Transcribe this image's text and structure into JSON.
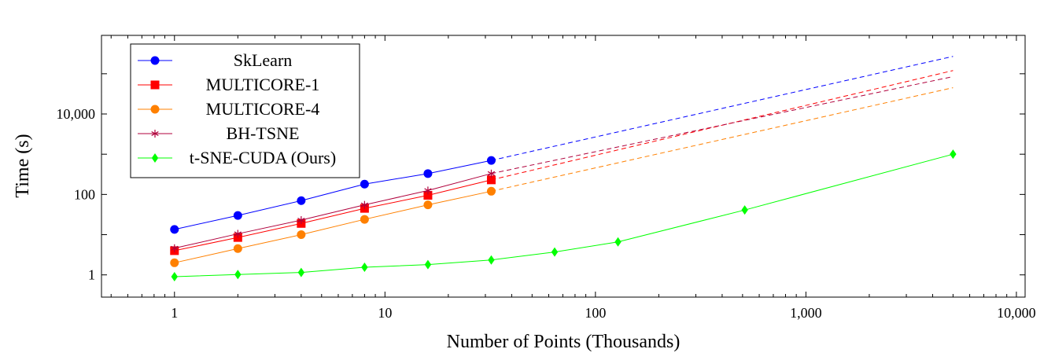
{
  "chart_data": {
    "type": "line",
    "title": "",
    "xlabel": "Number of Points (Thousands)",
    "ylabel": "Time (s)",
    "xscale": "log",
    "yscale": "log",
    "xlim": [
      0.45,
      11000
    ],
    "ylim": [
      0.28,
      900000
    ],
    "xticks": [
      {
        "value": 1,
        "label": "1"
      },
      {
        "value": 10,
        "label": "10"
      },
      {
        "value": 100,
        "label": "100"
      },
      {
        "value": 1000,
        "label": "1,000"
      },
      {
        "value": 10000,
        "label": "10,000"
      }
    ],
    "yticks": [
      {
        "value": 1,
        "label": "1"
      },
      {
        "value": 100,
        "label": "100"
      },
      {
        "value": 10000,
        "label": "10,000"
      }
    ],
    "grid": false,
    "legend_position": "top-left",
    "series": [
      {
        "name": "SkLearn",
        "color": "#0000ff",
        "marker": "circle",
        "x": [
          1,
          2,
          4,
          8,
          16,
          32
        ],
        "values": [
          13.5,
          30,
          70,
          180,
          330,
          700
        ],
        "extrapolation": {
          "x": [
            32,
            5000
          ],
          "values": [
            700,
            270000
          ]
        }
      },
      {
        "name": "MULTICORE-1",
        "color": "#ff0000",
        "marker": "square",
        "x": [
          1,
          2,
          4,
          8,
          16,
          32
        ],
        "values": [
          4,
          8.5,
          19,
          45,
          95,
          230
        ],
        "extrapolation": {
          "x": [
            32,
            5000
          ],
          "values": [
            230,
            120000
          ]
        }
      },
      {
        "name": "MULTICORE-4",
        "color": "#ff8000",
        "marker": "circle",
        "x": [
          1,
          2,
          4,
          8,
          16,
          32
        ],
        "values": [
          2,
          4.5,
          10,
          24,
          55,
          120
        ],
        "extrapolation": {
          "x": [
            32,
            5000
          ],
          "values": [
            120,
            45000
          ]
        }
      },
      {
        "name": "BH-TSNE",
        "color": "#b0003c",
        "marker": "star",
        "x": [
          1,
          2,
          4,
          8,
          16,
          32
        ],
        "values": [
          4.6,
          10.5,
          23,
          55,
          125,
          330
        ],
        "extrapolation": {
          "x": [
            32,
            5000
          ],
          "values": [
            330,
            85000
          ]
        }
      },
      {
        "name": "t-SNE-CUDA (Ours)",
        "color": "#00ff00",
        "marker": "diamond",
        "x": [
          1,
          2,
          4,
          8,
          16,
          32,
          64,
          128,
          512,
          5000
        ],
        "values": [
          0.9,
          1.02,
          1.15,
          1.55,
          1.8,
          2.35,
          3.7,
          6.6,
          41,
          1000
        ],
        "extrapolation": null
      }
    ]
  }
}
